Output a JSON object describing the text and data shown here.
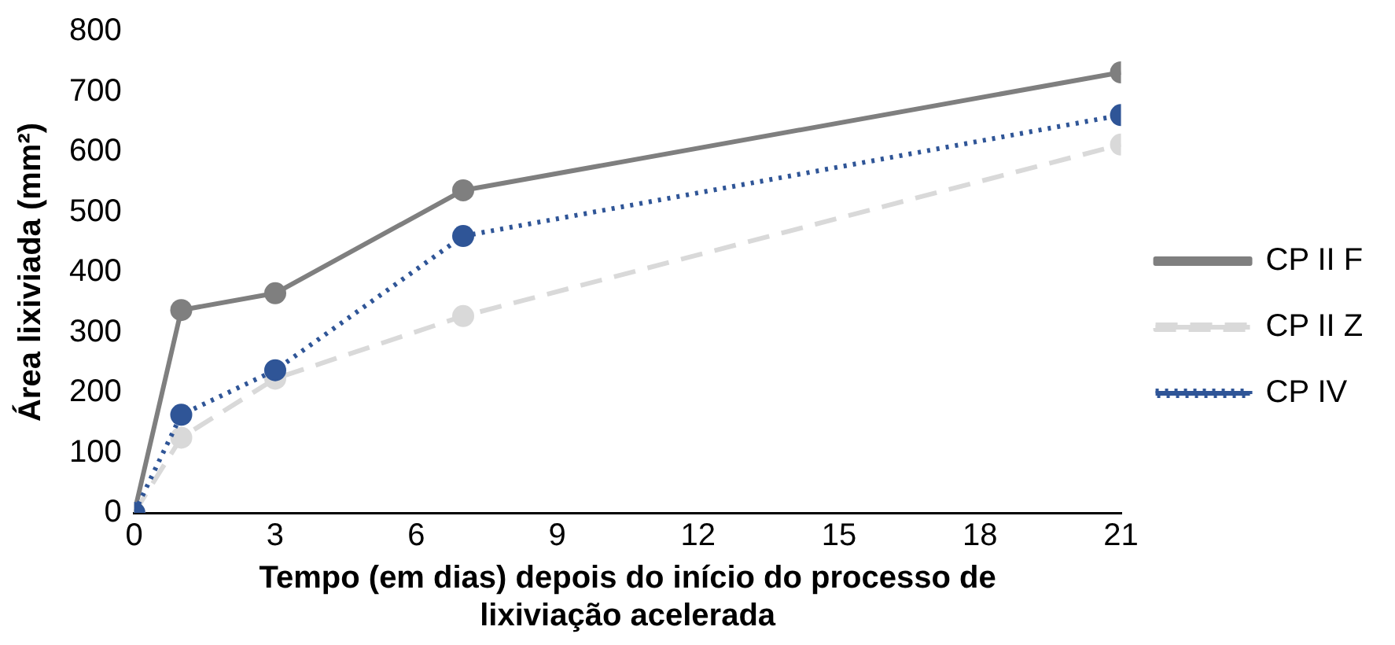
{
  "chart_data": {
    "type": "line",
    "xlabel": "Tempo (em dias) depois do início do processo de lixiviação acelerada",
    "ylabel": "Área lixiviada (mm²)",
    "x": [
      0,
      1,
      3,
      7,
      21
    ],
    "series": [
      {
        "name": "CP II F",
        "color": "#7f7f7f",
        "values": [
          0,
          337,
          365,
          536,
          732
        ],
        "line_style": "solid"
      },
      {
        "name": "CP II Z",
        "color": "#d9d9d9",
        "values": [
          0,
          125,
          223,
          327,
          612
        ],
        "line_style": "dashed"
      },
      {
        "name": "CP IV",
        "color": "#2f5597",
        "values": [
          0,
          163,
          237,
          460,
          661
        ],
        "line_style": "dotted"
      }
    ],
    "xlim": [
      0,
      21
    ],
    "xticks": [
      0,
      3,
      6,
      9,
      12,
      15,
      18,
      21
    ],
    "ylim": [
      0,
      800
    ],
    "yticks": [
      0,
      100,
      200,
      300,
      400,
      500,
      600,
      700,
      800
    ],
    "grid": false,
    "legend": "right",
    "marker": "circle"
  }
}
